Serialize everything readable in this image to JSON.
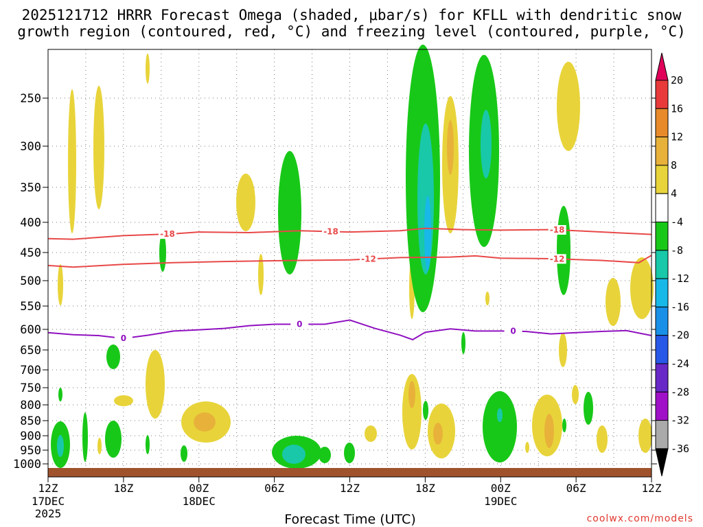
{
  "chart_data": {
    "type": "time-height contour plot",
    "title_line1": "2025121712 HRRR Forecast Omega (shaded, μbar/s) for KFLL with dendritic snow",
    "title_line2": "growth region (contoured, red, °C) and freezing level (contoured, purple, °C)",
    "xlabel": "Forecast Time (UTC)",
    "ylabel": "",
    "y_ticks": [
      "250",
      "300",
      "350",
      "400",
      "450",
      "500",
      "550",
      "600",
      "650",
      "700",
      "750",
      "800",
      "850",
      "900",
      "950",
      "1000"
    ],
    "x_ticks": [
      {
        "label": "12Z",
        "sub1": "17DEC",
        "sub2": "2025"
      },
      {
        "label": "18Z",
        "sub1": "",
        "sub2": ""
      },
      {
        "label": "00Z",
        "sub1": "18DEC",
        "sub2": ""
      },
      {
        "label": "06Z",
        "sub1": "",
        "sub2": ""
      },
      {
        "label": "12Z",
        "sub1": "",
        "sub2": ""
      },
      {
        "label": "18Z",
        "sub1": "",
        "sub2": ""
      },
      {
        "label": "00Z",
        "sub1": "19DEC",
        "sub2": ""
      },
      {
        "label": "06Z",
        "sub1": "",
        "sub2": ""
      },
      {
        "label": "12Z",
        "sub1": "",
        "sub2": ""
      }
    ],
    "forecast_hours_range": [
      0,
      48
    ],
    "pressure_range_hPa": [
      200,
      1030
    ],
    "colorbar": {
      "labels": [
        "20",
        "16",
        "12",
        "8",
        "4",
        "-4",
        "-8",
        "-12",
        "-16",
        "-20",
        "-24",
        "-28",
        "-32",
        "-36"
      ],
      "colors": [
        "#e0005a",
        "#e83a3a",
        "#e88a2a",
        "#e8b23a",
        "#e8d43a",
        "#ffffff",
        "#18c818",
        "#18c8a8",
        "#18b8e8",
        "#1890e8",
        "#2858e8",
        "#6828c8",
        "#a010c8",
        "#aaaaaa"
      ]
    },
    "contours": {
      "dgz_minus18": {
        "label": "-18",
        "color": "#e84848",
        "points": [
          [
            0,
            427
          ],
          [
            2,
            428
          ],
          [
            6,
            422
          ],
          [
            10,
            419
          ],
          [
            12,
            416
          ],
          [
            16,
            417
          ],
          [
            20,
            414
          ],
          [
            24,
            416
          ],
          [
            28,
            414
          ],
          [
            30,
            410
          ],
          [
            33,
            412
          ],
          [
            36,
            413
          ],
          [
            40,
            412
          ],
          [
            42,
            414
          ],
          [
            45,
            417
          ],
          [
            48,
            420
          ]
        ],
        "label_hours": [
          9.5,
          22.5,
          40.5
        ]
      },
      "dgz_minus12": {
        "label": "-12",
        "color": "#e84848",
        "points": [
          [
            0,
            473
          ],
          [
            2,
            476
          ],
          [
            6,
            471
          ],
          [
            10,
            468
          ],
          [
            14,
            466
          ],
          [
            20,
            464
          ],
          [
            24,
            463
          ],
          [
            28,
            459
          ],
          [
            32,
            458
          ],
          [
            34,
            456
          ],
          [
            36,
            460
          ],
          [
            40,
            461
          ],
          [
            44,
            464
          ],
          [
            47,
            468
          ],
          [
            48,
            455
          ]
        ],
        "label_hours": [
          25.5,
          40.5
        ]
      },
      "freezing_level_0": {
        "label": "0",
        "color": "#9010c0",
        "points": [
          [
            0,
            608
          ],
          [
            2,
            613
          ],
          [
            4,
            615
          ],
          [
            6,
            622
          ],
          [
            8,
            614
          ],
          [
            10,
            604
          ],
          [
            12,
            601
          ],
          [
            14,
            598
          ],
          [
            16,
            592
          ],
          [
            18,
            589
          ],
          [
            20,
            589
          ],
          [
            22,
            589
          ],
          [
            24,
            580
          ],
          [
            26,
            598
          ],
          [
            28,
            614
          ],
          [
            29,
            625
          ],
          [
            30,
            607
          ],
          [
            32,
            599
          ],
          [
            34,
            604
          ],
          [
            36,
            604
          ],
          [
            38,
            605
          ],
          [
            40,
            611
          ],
          [
            42,
            608
          ],
          [
            44,
            605
          ],
          [
            46,
            603
          ],
          [
            48,
            615
          ]
        ],
        "label_hours": [
          6.0,
          20.0,
          37.0
        ]
      }
    },
    "ground_color": "#a0522d",
    "gridlines": "dotted"
  },
  "credit": "coolwx.com/models"
}
